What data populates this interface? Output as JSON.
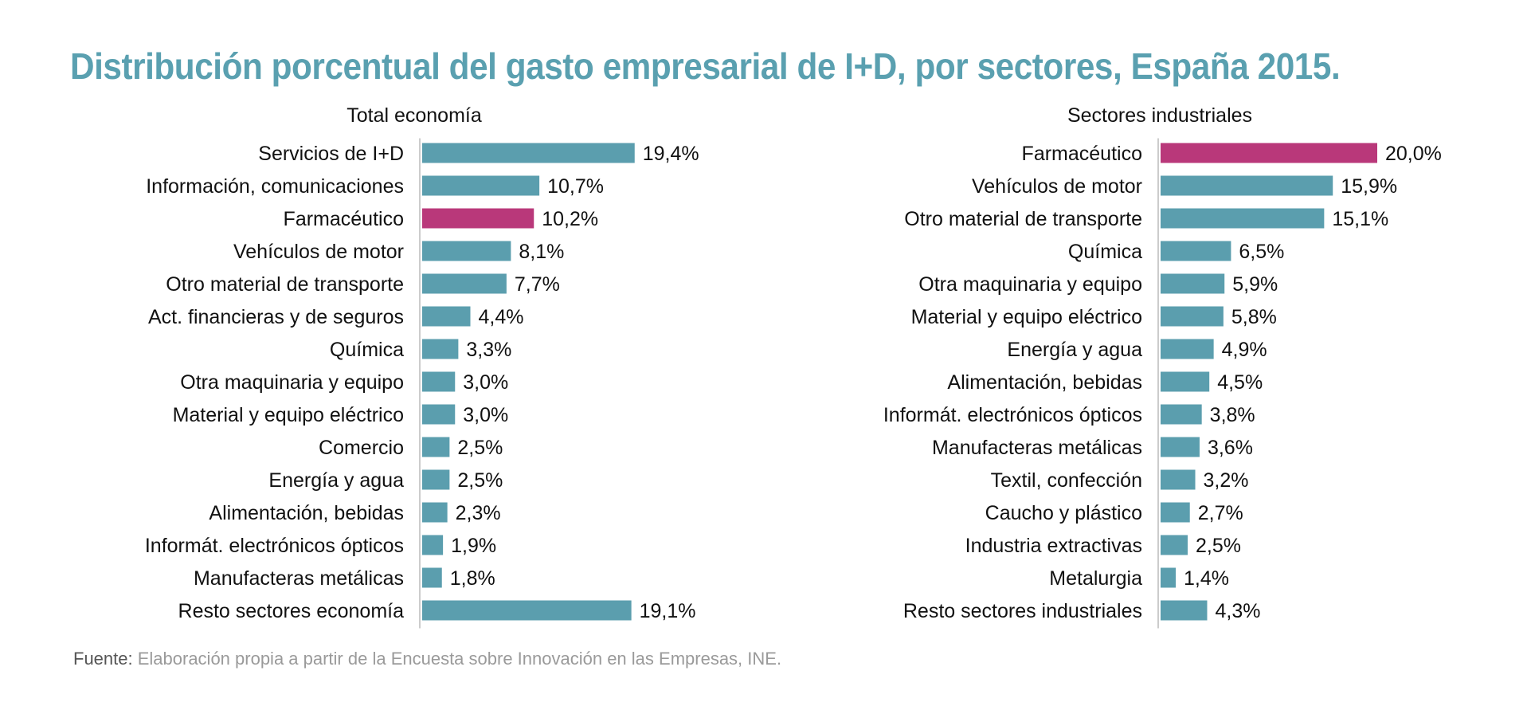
{
  "title": "Distribución porcentual del gasto empresarial de I+D, por sectores, España 2015.",
  "footer": {
    "lead": "Fuente:",
    "text": " Elaboración propia a partir de la Encuesta sobre Innovación en las Empresas, INE."
  },
  "colors": {
    "bar": "#5b9eae",
    "highlight": "#b9387a",
    "title": "#5aa0b0",
    "axis": "#cccccc"
  },
  "chart_data": [
    {
      "type": "bar",
      "orientation": "horizontal",
      "title": "Total economía",
      "categories": [
        "Servicios de I+D",
        "Información, comunicaciones",
        "Farmacéutico",
        "Vehículos de motor",
        "Otro material de transporte",
        "Act. financieras y de seguros",
        "Química",
        "Otra maquinaria y equipo",
        "Material y equipo eléctrico",
        "Comercio",
        "Energía y agua",
        "Alimentación, bebidas",
        "Informát. electrónicos ópticos",
        "Manufacteras metálicas",
        "Resto sectores economía"
      ],
      "values": [
        19.4,
        10.7,
        10.2,
        8.1,
        7.7,
        4.4,
        3.3,
        3.0,
        3.0,
        2.5,
        2.5,
        2.3,
        1.9,
        1.8,
        19.1
      ],
      "value_labels": [
        "19,4%",
        "10,7%",
        "10,2%",
        "8,1%",
        "7,7%",
        "4,4%",
        "3,3%",
        "3,0%",
        "3,0%",
        "2,5%",
        "2,5%",
        "2,3%",
        "1,9%",
        "1,8%",
        "19,1%"
      ],
      "highlight": "Farmacéutico"
    },
    {
      "type": "bar",
      "orientation": "horizontal",
      "title": "Sectores industriales",
      "categories": [
        "Farmacéutico",
        "Vehículos de motor",
        "Otro material de transporte",
        "Química",
        "Otra maquinaria y equipo",
        "Material y equipo eléctrico",
        "Energía y agua",
        "Alimentación, bebidas",
        "Informát. electrónicos ópticos",
        "Manufacteras metálicas",
        "Textil, confección",
        "Caucho y plástico",
        "Industria extractivas",
        "Metalurgia",
        "Resto sectores industriales"
      ],
      "values": [
        20.0,
        15.9,
        15.1,
        6.5,
        5.9,
        5.8,
        4.9,
        4.5,
        3.8,
        3.6,
        3.2,
        2.7,
        2.5,
        1.4,
        4.3
      ],
      "value_labels": [
        "20,0%",
        "15,9%",
        "15,1%",
        "6,5%",
        "5,9%",
        "5,8%",
        "4,9%",
        "4,5%",
        "3,8%",
        "3,6%",
        "3,2%",
        "2,7%",
        "2,5%",
        "1,4%",
        "4,3%"
      ],
      "highlight": "Farmacéutico"
    }
  ]
}
